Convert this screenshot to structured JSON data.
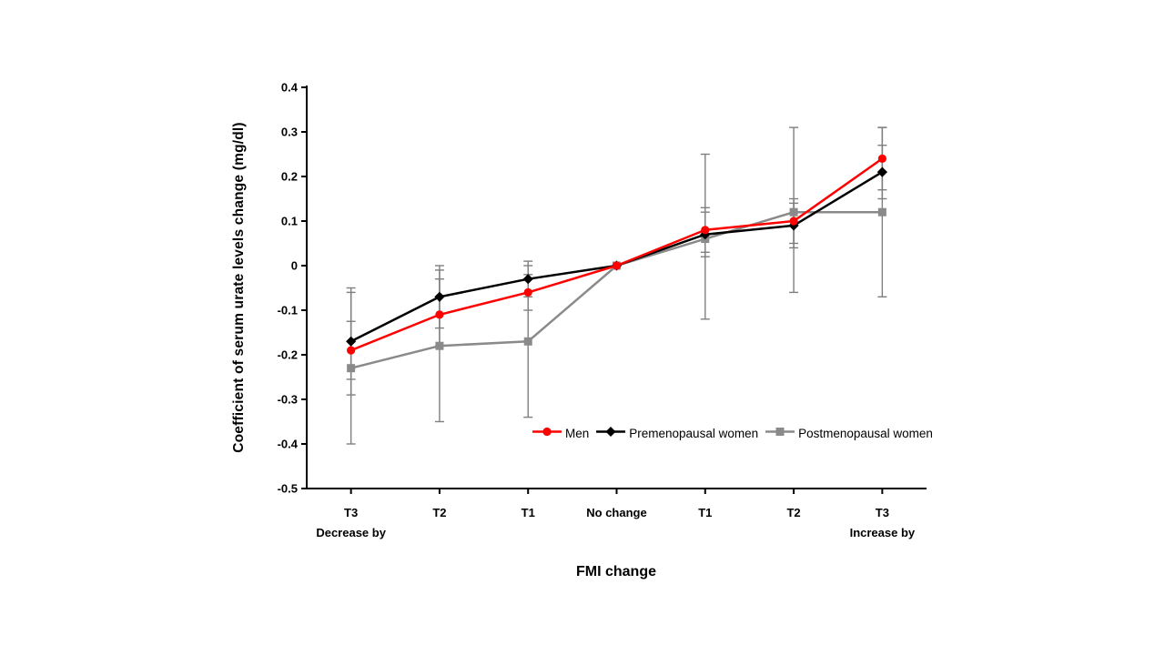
{
  "chart_data": {
    "type": "line",
    "title": "",
    "xlabel": "FMI change",
    "ylabel": "Coefficient of serum urate levels change (mg/dl)",
    "categories": [
      "T3",
      "T2",
      "T1",
      "No change",
      "T1",
      "T2",
      "T3"
    ],
    "category_sublabels": {
      "0": "Decrease by",
      "6": "Increase by"
    },
    "ylim": [
      -0.5,
      0.4
    ],
    "ytick_labels": [
      "0.4",
      "0.3",
      "0.2",
      "0.1",
      "0",
      "-0.1",
      "-0.2",
      "-0.3",
      "-0.4",
      "-0.5"
    ],
    "grid": false,
    "legend_position": "inside-bottom-right",
    "axis_color": "#000000",
    "error_bar_color": "#7f7f7f",
    "series": [
      {
        "name": "Postmenopausal women",
        "marker": "square",
        "color": "#8a8a8a",
        "values": [
          -0.23,
          -0.18,
          -0.17,
          0,
          0.06,
          0.12,
          0.12
        ],
        "error_bars": [
          [
            -0.4,
            -0.06
          ],
          [
            -0.35,
            -0.01
          ],
          [
            -0.34,
            0.0
          ],
          null,
          [
            -0.12,
            0.25
          ],
          [
            -0.06,
            0.31
          ],
          [
            -0.07,
            0.31
          ]
        ]
      },
      {
        "name": "Premenopausal women",
        "marker": "diamond",
        "color": "#000000",
        "values": [
          -0.17,
          -0.07,
          -0.03,
          0,
          0.07,
          0.09,
          0.21
        ],
        "error_bars": [
          [
            -0.29,
            -0.05
          ],
          [
            -0.14,
            0.0
          ],
          [
            -0.07,
            0.01
          ],
          null,
          [
            0.02,
            0.12
          ],
          [
            0.04,
            0.14
          ],
          [
            0.15,
            0.27
          ]
        ]
      },
      {
        "name": "Men",
        "marker": "circle",
        "color": "#ff0000",
        "values": [
          -0.19,
          -0.11,
          -0.06,
          0,
          0.08,
          0.1,
          0.24
        ],
        "error_bars": [
          [
            -0.255,
            -0.125
          ],
          [
            -0.18,
            -0.03
          ],
          [
            -0.1,
            -0.02
          ],
          null,
          [
            0.03,
            0.13
          ],
          [
            0.05,
            0.15
          ],
          [
            0.17,
            0.31
          ]
        ]
      }
    ],
    "legend_order": [
      2,
      1,
      0
    ]
  }
}
